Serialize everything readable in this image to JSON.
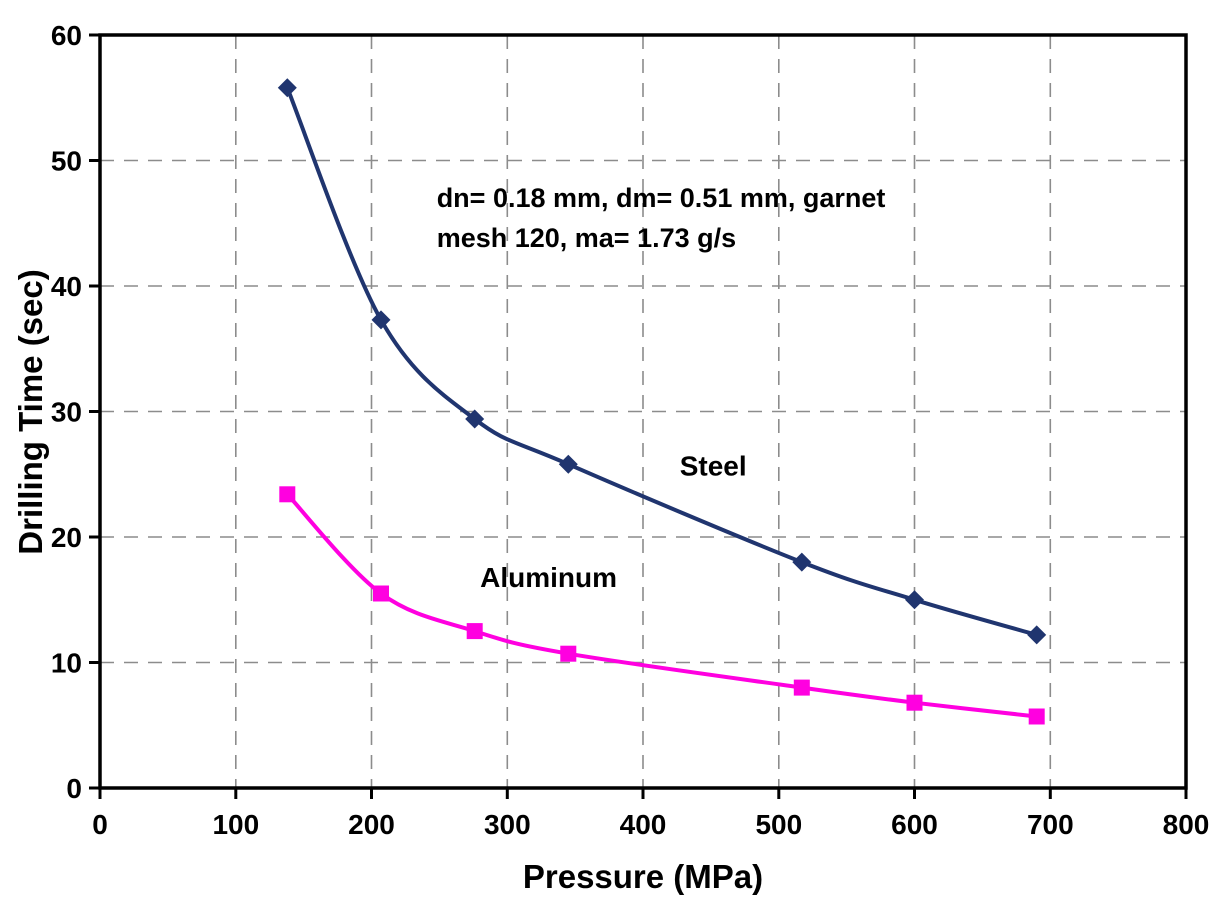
{
  "chart_data": {
    "type": "line",
    "title": "",
    "xlabel": "Pressure (MPa)",
    "ylabel": "Drilling Time (sec)",
    "xlim": [
      0,
      800
    ],
    "ylim": [
      0,
      60
    ],
    "xticks": [
      0,
      100,
      200,
      300,
      400,
      500,
      600,
      700,
      800
    ],
    "yticks": [
      0,
      10,
      20,
      30,
      40,
      50,
      60
    ],
    "grid": "dashed",
    "legend_position": "inline-labels",
    "series": [
      {
        "name": "Steel",
        "color": "#20356f",
        "marker": "diamond",
        "x": [
          138,
          207,
          276,
          345,
          517,
          600,
          690
        ],
        "y": [
          55.8,
          37.3,
          29.4,
          25.8,
          18.0,
          15.0,
          12.2
        ],
        "label_pos": {
          "x": 427,
          "y": 24.9
        }
      },
      {
        "name": "Aluminum",
        "color": "#ff00e0",
        "marker": "square",
        "x": [
          138,
          207,
          276,
          345,
          517,
          600,
          690
        ],
        "y": [
          23.4,
          15.5,
          12.5,
          10.7,
          8.0,
          6.8,
          5.7
        ],
        "label_pos": {
          "x": 280,
          "y": 16.0
        }
      }
    ],
    "annotation": {
      "lines": [
        "dn= 0.18 mm, dm= 0.51 mm, garnet",
        "mesh 120, ma= 1.73 g/s"
      ],
      "x": 248,
      "y": 46.3
    }
  }
}
